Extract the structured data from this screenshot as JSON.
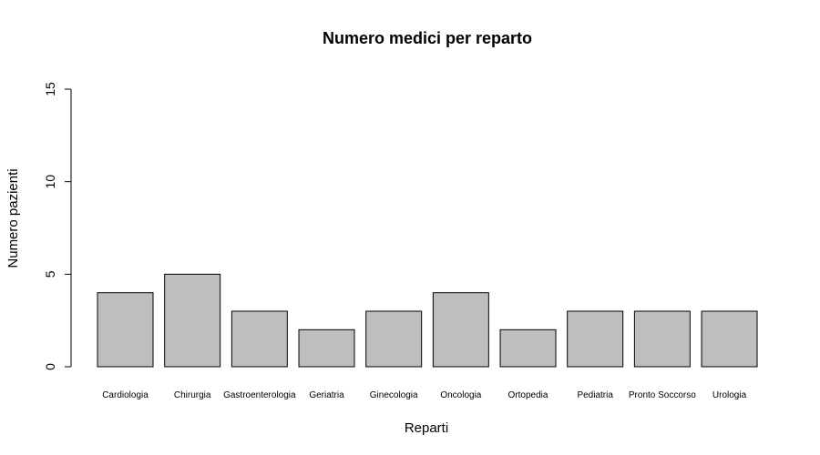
{
  "chart_data": {
    "type": "bar",
    "title": "Numero medici per reparto",
    "xlabel": "Reparti",
    "ylabel": "Numero pazienti",
    "categories": [
      "Cardiologia",
      "Chirurgia",
      "Gastroenterologia",
      "Geriatria",
      "Ginecologia",
      "Oncologia",
      "Ortopedia",
      "Pediatria",
      "Pronto Soccorso",
      "Urologia"
    ],
    "values": [
      4,
      5,
      3,
      2,
      3,
      4,
      2,
      3,
      3,
      3
    ],
    "ylim": [
      0,
      15
    ],
    "yticks": [
      0,
      5,
      10,
      15
    ],
    "grid": false,
    "legend": false,
    "bar_color": "#bebebe"
  }
}
